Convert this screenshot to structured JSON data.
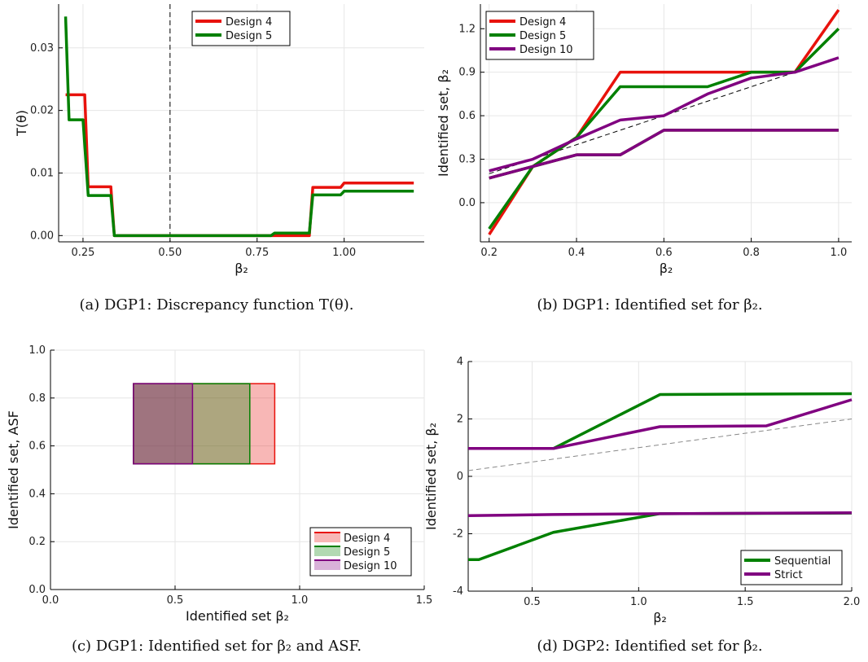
{
  "chart_data": [
    {
      "id": "a",
      "type": "line",
      "caption": "(a) DGP1: Discrepancy function T(θ).",
      "xlabel": "β₂",
      "ylabel": "T(θ)",
      "xlim": [
        0.18,
        1.23
      ],
      "ylim": [
        -0.001,
        0.037
      ],
      "xticks": [
        0.25,
        0.5,
        0.75,
        1.0
      ],
      "xtick_labels": [
        "0.25",
        "0.50",
        "0.75",
        "1.00"
      ],
      "yticks": [
        0.0,
        0.01,
        0.02,
        0.03
      ],
      "ytick_labels": [
        "0.00",
        "0.01",
        "0.02",
        "0.03"
      ],
      "grid": true,
      "legend": "top-center",
      "ref_vline": 0.5,
      "series": [
        {
          "name": "Design 4",
          "color": "#e8120c",
          "x": [
            0.2,
            0.255,
            0.265,
            0.33,
            0.34,
            0.79,
            0.9,
            0.91,
            0.99,
            1.0,
            1.2
          ],
          "y": [
            0.0225,
            0.0225,
            0.0078,
            0.0078,
            0.0,
            0.0,
            0.0,
            0.0077,
            0.0077,
            0.0084,
            0.0084
          ]
        },
        {
          "name": "Design 5",
          "color": "#008000",
          "x": [
            0.2,
            0.21,
            0.25,
            0.265,
            0.33,
            0.34,
            0.79,
            0.8,
            0.9,
            0.91,
            0.99,
            1.0,
            1.2
          ],
          "y": [
            0.035,
            0.0185,
            0.0185,
            0.0064,
            0.0064,
            0.0,
            0.0,
            0.0004,
            0.0004,
            0.0065,
            0.0065,
            0.0071,
            0.0071
          ]
        }
      ]
    },
    {
      "id": "b",
      "type": "line",
      "caption": "(b) DGP1: Identified set for β₂.",
      "xlabel": "β₂",
      "ylabel": "Identified set, β₂",
      "xlim": [
        0.18,
        1.03
      ],
      "ylim": [
        -0.27,
        1.37
      ],
      "xticks": [
        0.2,
        0.4,
        0.6,
        0.8,
        1.0
      ],
      "xtick_labels": [
        "0.2",
        "0.4",
        "0.6",
        "0.8",
        "1.0"
      ],
      "yticks": [
        0.0,
        0.3,
        0.6,
        0.9,
        1.2
      ],
      "ytick_labels": [
        "0.0",
        "0.3",
        "0.6",
        "0.9",
        "1.2"
      ],
      "grid": true,
      "legend": "top-left",
      "ref_line": {
        "x": [
          0.2,
          1.0
        ],
        "y": [
          0.2,
          1.0
        ]
      },
      "series": [
        {
          "name": "Design 4",
          "color": "#e8120c",
          "upper": {
            "x": [
              0.2,
              0.3,
              0.4,
              0.5,
              0.6,
              0.7,
              0.8,
              0.9,
              1.0
            ],
            "y": [
              -0.22,
              0.25,
              0.45,
              0.9,
              0.9,
              0.9,
              0.9,
              0.9,
              1.33
            ]
          },
          "lower": {
            "x": [
              0.2,
              0.3,
              0.4,
              0.5,
              0.6,
              0.7,
              0.8,
              0.9,
              1.0
            ],
            "y": [
              0.17,
              0.25,
              0.33,
              0.33,
              0.5,
              0.5,
              0.5,
              0.5,
              0.5
            ]
          }
        },
        {
          "name": "Design 5",
          "color": "#008000",
          "upper": {
            "x": [
              0.2,
              0.3,
              0.4,
              0.5,
              0.6,
              0.7,
              0.8,
              0.9,
              1.0
            ],
            "y": [
              -0.18,
              0.25,
              0.45,
              0.8,
              0.8,
              0.8,
              0.9,
              0.9,
              1.2
            ]
          },
          "lower": {
            "x": [
              0.2,
              0.3,
              0.4,
              0.5,
              0.6,
              0.7,
              0.8,
              0.9,
              1.0
            ],
            "y": [
              0.17,
              0.25,
              0.33,
              0.33,
              0.5,
              0.5,
              0.5,
              0.5,
              0.5
            ]
          }
        },
        {
          "name": "Design 10",
          "color": "#800080",
          "upper": {
            "x": [
              0.2,
              0.3,
              0.4,
              0.5,
              0.6,
              0.7,
              0.8,
              0.9,
              1.0
            ],
            "y": [
              0.22,
              0.3,
              0.44,
              0.57,
              0.6,
              0.75,
              0.86,
              0.9,
              1.0
            ]
          },
          "lower": {
            "x": [
              0.2,
              0.3,
              0.4,
              0.5,
              0.6,
              0.7,
              0.8,
              0.9,
              1.0
            ],
            "y": [
              0.17,
              0.25,
              0.33,
              0.33,
              0.5,
              0.5,
              0.5,
              0.5,
              0.5
            ]
          }
        }
      ]
    },
    {
      "id": "c",
      "type": "area",
      "caption": "(c) DGP1: Identified set for β₂ and ASF.",
      "xlabel": "Identified set β₂",
      "ylabel": "Identified set, ASF",
      "xlim": [
        0.0,
        1.5
      ],
      "ylim": [
        0.0,
        1.0
      ],
      "xticks": [
        0.0,
        0.5,
        1.0,
        1.5
      ],
      "xtick_labels": [
        "0.0",
        "0.5",
        "1.0",
        "1.5"
      ],
      "yticks": [
        0.0,
        0.2,
        0.4,
        0.6,
        0.8,
        1.0
      ],
      "ytick_labels": [
        "0.0",
        "0.2",
        "0.4",
        "0.6",
        "0.8",
        "1.0"
      ],
      "grid": true,
      "legend": "bottom-right",
      "series": [
        {
          "name": "Design 4",
          "color": "#e8120c",
          "x": [
            0.333,
            0.9
          ],
          "y": [
            0.525,
            0.86
          ]
        },
        {
          "name": "Design 5",
          "color": "#008000",
          "x": [
            0.333,
            0.8
          ],
          "y": [
            0.525,
            0.86
          ]
        },
        {
          "name": "Design 10",
          "color": "#800080",
          "x": [
            0.333,
            0.57
          ],
          "y": [
            0.525,
            0.86
          ]
        }
      ]
    },
    {
      "id": "d",
      "type": "line",
      "caption": "(d) DGP2: Identified set for β₂.",
      "xlabel": "β₂",
      "ylabel": "Identified set, β₂",
      "xlim": [
        0.2,
        2.0
      ],
      "ylim": [
        -4,
        4
      ],
      "xticks": [
        0.5,
        1.0,
        1.5,
        2.0
      ],
      "xtick_labels": [
        "0.5",
        "1.0",
        "1.5",
        "2.0"
      ],
      "yticks": [
        -4,
        -2,
        0,
        2,
        4
      ],
      "ytick_labels": [
        "-4",
        "-2",
        "0",
        "2",
        "4"
      ],
      "grid": true,
      "legend": "bottom-right",
      "ref_line": {
        "x": [
          0.2,
          2.0
        ],
        "y": [
          0.2,
          2.0
        ]
      },
      "series": [
        {
          "name": "Sequential",
          "color": "#008000",
          "upper": {
            "x": [
              0.2,
              0.25,
              0.6,
              1.1,
              2.0
            ],
            "y": [
              0.97,
              0.97,
              0.97,
              2.85,
              2.88
            ]
          },
          "lower": {
            "x": [
              0.2,
              0.25,
              0.6,
              1.1,
              2.0
            ],
            "y": [
              -2.9,
              -2.9,
              -1.95,
              -1.3,
              -1.28
            ]
          }
        },
        {
          "name": "Strict",
          "color": "#800080",
          "upper": {
            "x": [
              0.2,
              0.6,
              1.1,
              1.6,
              2.0
            ],
            "y": [
              0.97,
              0.97,
              1.73,
              1.76,
              2.67
            ]
          },
          "lower": {
            "x": [
              0.2,
              0.6,
              1.1,
              2.0
            ],
            "y": [
              -1.37,
              -1.33,
              -1.3,
              -1.27
            ]
          }
        }
      ]
    }
  ]
}
